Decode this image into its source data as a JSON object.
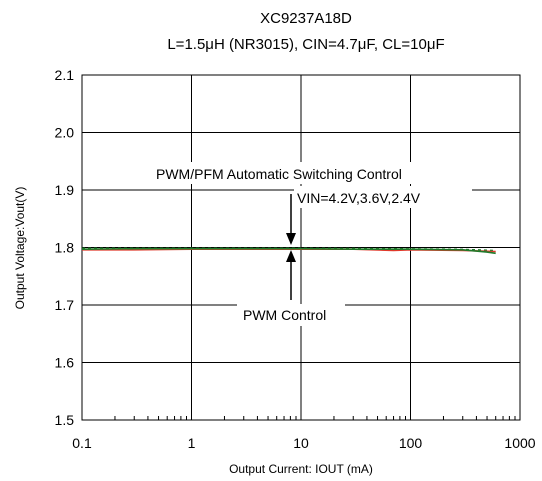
{
  "chart_data": {
    "type": "line",
    "title": "XC9237A18D",
    "subtitle": "L=1.5μH (NR3015), CIN=4.7μF, CL=10μF",
    "xlabel": "Output Current: IOUT (mA)",
    "ylabel": "Output Voltage:Vout(V)",
    "x_scale": "log",
    "xlim": [
      0.1,
      1000
    ],
    "ylim": [
      1.5,
      2.1
    ],
    "x_ticks": [
      "0.1",
      "1",
      "10",
      "100",
      "1000"
    ],
    "y_ticks": [
      "1.5",
      "1.6",
      "1.7",
      "1.8",
      "1.9",
      "2.0",
      "2.1"
    ],
    "grid": true,
    "annotations": {
      "pwm_pfm": "PWM/PFM  Automatic Switching Control",
      "vin": "VIN=4.2V,3.6V,2.4V",
      "pwm": "PWM Control"
    },
    "series": [
      {
        "color": "#e0392b",
        "dashed": false,
        "points": [
          [
            0.1,
            1.796
          ],
          [
            0.3,
            1.796
          ],
          [
            1,
            1.797
          ],
          [
            3,
            1.797
          ],
          [
            10,
            1.797
          ],
          [
            30,
            1.797
          ],
          [
            70,
            1.795
          ],
          [
            100,
            1.796
          ],
          [
            300,
            1.795
          ],
          [
            600,
            1.793
          ]
        ]
      },
      {
        "color": "#1f7a2a",
        "dashed": false,
        "points": [
          [
            0.1,
            1.797
          ],
          [
            0.3,
            1.798
          ],
          [
            1,
            1.798
          ],
          [
            3,
            1.798
          ],
          [
            10,
            1.798
          ],
          [
            30,
            1.797
          ],
          [
            100,
            1.797
          ],
          [
            300,
            1.796
          ],
          [
            500,
            1.792
          ],
          [
            600,
            1.79
          ]
        ]
      },
      {
        "color": "#1f7a2a",
        "dashed": true,
        "points": [
          [
            0.1,
            1.799
          ],
          [
            1,
            1.799
          ],
          [
            10,
            1.799
          ],
          [
            100,
            1.798
          ],
          [
            300,
            1.797
          ],
          [
            600,
            1.795
          ]
        ]
      }
    ]
  }
}
